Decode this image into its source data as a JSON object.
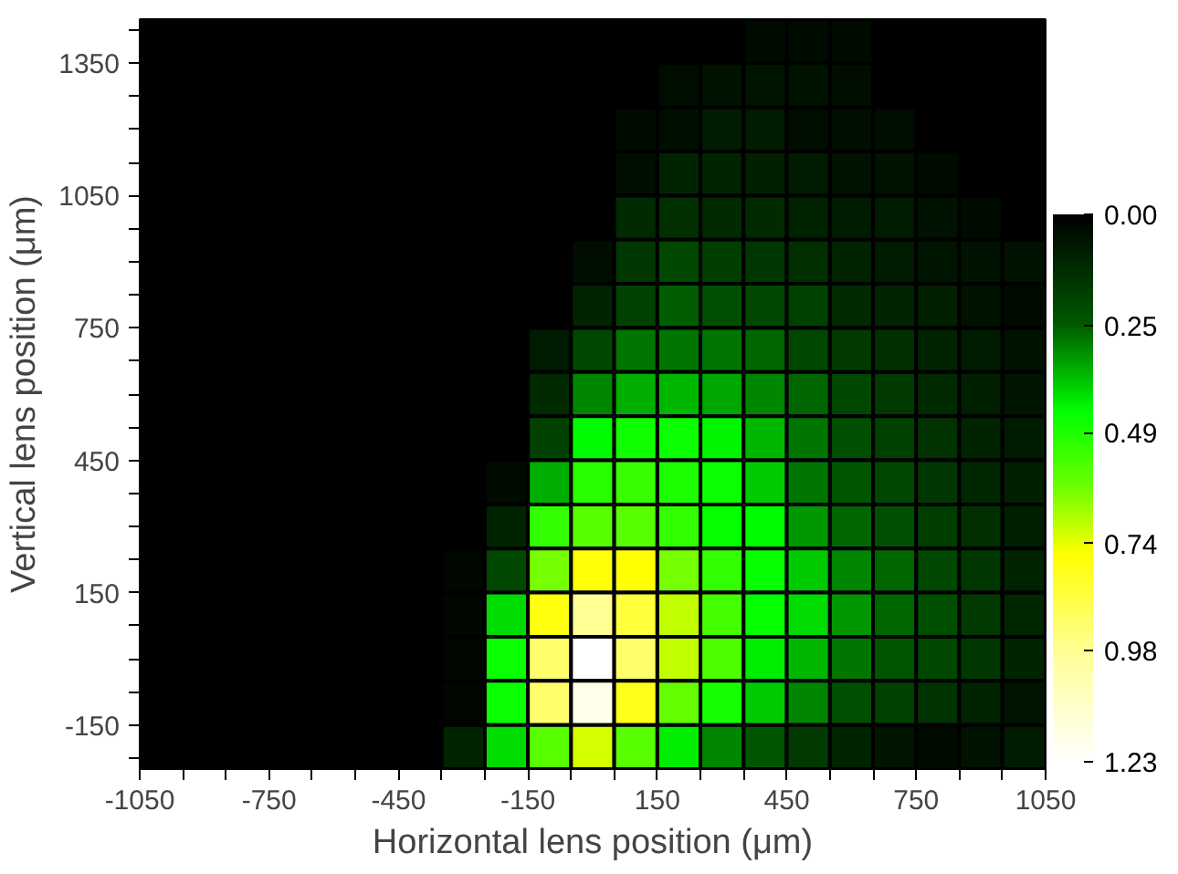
{
  "chart_data": {
    "type": "heatmap",
    "xlabel": "Horizontal lens position (μm)",
    "ylabel": "Vertical lens position (μm)",
    "x": [
      -300,
      -200,
      -100,
      0,
      100,
      200,
      300,
      400,
      500,
      600,
      700,
      800,
      900,
      1000
    ],
    "y": [
      1400,
      1300,
      1200,
      1100,
      1000,
      900,
      800,
      700,
      600,
      500,
      400,
      300,
      200,
      100,
      0,
      -100,
      -200
    ],
    "cells": [
      [
        null,
        null,
        null,
        null,
        null,
        null,
        null,
        0.03,
        0.03,
        0.03,
        null,
        null,
        null,
        null
      ],
      [
        null,
        null,
        null,
        null,
        null,
        0.04,
        0.05,
        0.06,
        0.05,
        0.04,
        null,
        null,
        null,
        null
      ],
      [
        null,
        null,
        null,
        null,
        0.03,
        0.04,
        0.08,
        0.08,
        0.04,
        0.04,
        0.04,
        null,
        null,
        null
      ],
      [
        null,
        null,
        null,
        null,
        0.04,
        0.1,
        0.1,
        0.09,
        0.08,
        0.05,
        0.05,
        0.03,
        null,
        null
      ],
      [
        null,
        null,
        null,
        null,
        0.12,
        0.13,
        0.12,
        0.12,
        0.1,
        0.08,
        0.08,
        0.05,
        0.03,
        null
      ],
      [
        null,
        null,
        null,
        0.04,
        0.15,
        0.2,
        0.17,
        0.15,
        0.13,
        0.1,
        0.08,
        0.06,
        0.05,
        0.05
      ],
      [
        null,
        null,
        null,
        0.1,
        0.18,
        0.25,
        0.22,
        0.2,
        0.18,
        0.12,
        0.1,
        0.09,
        0.05,
        0.03
      ],
      [
        null,
        null,
        0.08,
        0.2,
        0.28,
        0.28,
        0.28,
        0.26,
        0.2,
        0.16,
        0.13,
        0.1,
        0.08,
        0.05
      ],
      [
        null,
        null,
        0.12,
        0.3,
        0.35,
        0.36,
        0.34,
        0.3,
        0.26,
        0.2,
        0.16,
        0.12,
        0.09,
        0.06
      ],
      [
        null,
        null,
        0.18,
        0.44,
        0.47,
        0.46,
        0.43,
        0.36,
        0.28,
        0.22,
        0.18,
        0.14,
        0.1,
        0.08
      ],
      [
        null,
        0.03,
        0.35,
        0.5,
        0.53,
        0.49,
        0.46,
        0.38,
        0.28,
        0.24,
        0.2,
        0.15,
        0.11,
        0.09
      ],
      [
        null,
        0.1,
        0.52,
        0.58,
        0.58,
        0.52,
        0.45,
        0.44,
        0.32,
        0.26,
        0.22,
        0.17,
        0.13,
        0.09
      ],
      [
        0.02,
        0.2,
        0.62,
        0.77,
        0.76,
        0.62,
        0.52,
        0.45,
        0.38,
        0.3,
        0.26,
        0.2,
        0.15,
        0.1
      ],
      [
        0.02,
        0.4,
        0.78,
        0.98,
        0.85,
        0.7,
        0.55,
        0.45,
        0.4,
        0.32,
        0.26,
        0.22,
        0.16,
        0.11
      ],
      [
        0.02,
        0.46,
        0.92,
        1.23,
        0.92,
        0.7,
        0.56,
        0.42,
        0.36,
        0.28,
        0.24,
        0.2,
        0.15,
        0.1
      ],
      [
        0.02,
        0.46,
        0.92,
        1.18,
        0.8,
        0.6,
        0.48,
        0.38,
        0.3,
        0.22,
        0.18,
        0.14,
        0.1,
        0.06
      ],
      [
        0.1,
        0.4,
        0.58,
        0.72,
        0.58,
        0.42,
        0.3,
        0.24,
        0.16,
        0.1,
        0.06,
        0.03,
        0.05,
        0.08
      ]
    ],
    "clim": [
      0,
      1.23
    ],
    "cticks": [
      {
        "value": 0,
        "label": "0.00"
      },
      {
        "value": 0.25,
        "label": "0.25"
      },
      {
        "value": 0.49,
        "label": "0.49"
      },
      {
        "value": 0.74,
        "label": "0.74"
      },
      {
        "value": 0.98,
        "label": "0.98"
      },
      {
        "value": 1.23,
        "label": "1.23"
      }
    ],
    "xlim": [
      -1050,
      1050
    ],
    "ylim": [
      -250,
      1450
    ],
    "xticks": [
      -1050,
      {
        "value": -950,
        "label": null
      },
      {
        "value": -850,
        "label": null
      },
      -750,
      {
        "value": -650,
        "label": null
      },
      {
        "value": -550,
        "label": null
      },
      -450,
      {
        "value": -350,
        "label": null
      },
      {
        "value": -250,
        "label": null
      },
      -150,
      {
        "value": -50,
        "label": null
      },
      {
        "value": 50,
        "label": null
      },
      150,
      {
        "value": 250,
        "label": null
      },
      {
        "value": 350,
        "label": null
      },
      450,
      {
        "value": 550,
        "label": null
      },
      {
        "value": 650,
        "label": null
      },
      750,
      {
        "value": 850,
        "label": null
      },
      {
        "value": 950,
        "label": null
      },
      1050
    ],
    "yticks": [
      {
        "value": -225,
        "label": null
      },
      -150,
      {
        "value": -75,
        "label": null
      },
      {
        "value": 0,
        "label": null
      },
      {
        "value": 75,
        "label": null
      },
      150,
      {
        "value": 225,
        "label": null
      },
      {
        "value": 300,
        "label": null
      },
      {
        "value": 375,
        "label": null
      },
      450,
      {
        "value": 525,
        "label": null
      },
      {
        "value": 600,
        "label": null
      },
      {
        "value": 675,
        "label": null
      },
      750,
      {
        "value": 825,
        "label": null
      },
      {
        "value": 900,
        "label": null
      },
      {
        "value": 975,
        "label": null
      },
      1050,
      {
        "value": 1125,
        "label": null
      },
      {
        "value": 1200,
        "label": null
      },
      {
        "value": 1275,
        "label": null
      },
      1350,
      {
        "value": 1425,
        "label": null
      }
    ],
    "grid": false
  }
}
